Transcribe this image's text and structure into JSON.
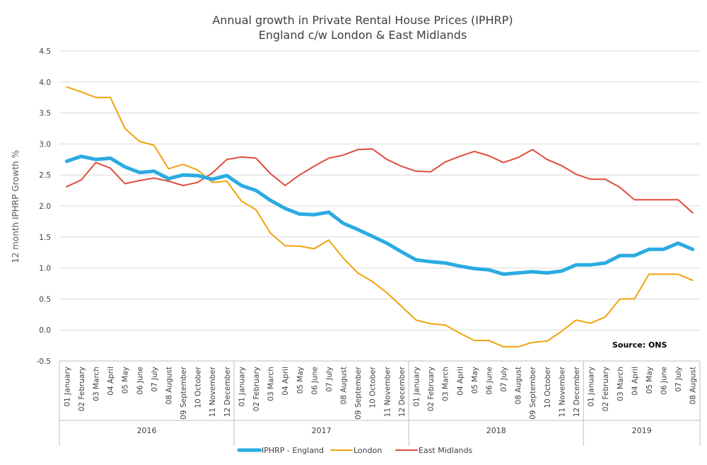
{
  "chart_data": {
    "type": "line",
    "title": "Annual growth in Private Rental House Prices (IPHRP)",
    "subtitle": "England c/w London & East Midlands",
    "ylabel": "12 month IPHRP Growth %",
    "ylim": [
      -0.5,
      4.5
    ],
    "yticks": [
      "4.5",
      "4.0",
      "3.5",
      "3.0",
      "2.5",
      "2.0",
      "1.5",
      "1.0",
      "0.5",
      "0.0",
      "-0.5"
    ],
    "grid": true,
    "legend_position": "bottom",
    "annotation": "Source: ONS",
    "years": [
      "2016",
      "2017",
      "2018",
      "2019"
    ],
    "categories": [
      "01 January",
      "02 February",
      "03 March",
      "04 April",
      "05 May",
      "06 June",
      "07 July",
      "08 August",
      "09 September",
      "10 October",
      "11 November",
      "12 December",
      "01 January",
      "02 February",
      "03 March",
      "04 April",
      "05 May",
      "06 June",
      "07 July",
      "08 August",
      "09 September",
      "10 October",
      "11 November",
      "12 December",
      "01 January",
      "02 February",
      "03 March",
      "04 April",
      "05 May",
      "06 June",
      "07 July",
      "08 August",
      "09 September",
      "10 October",
      "11 November",
      "12 December",
      "01 January",
      "02 February",
      "03 March",
      "04 April",
      "05 May",
      "06 June",
      "07 July",
      "08 August"
    ],
    "series": [
      {
        "name": "IPHRP - England",
        "color": "#2AABE2",
        "width": 5,
        "values": [
          2.72,
          2.8,
          2.75,
          2.77,
          2.63,
          2.54,
          2.56,
          2.44,
          2.5,
          2.49,
          2.43,
          2.49,
          2.33,
          2.25,
          2.09,
          1.96,
          1.87,
          1.86,
          1.9,
          1.72,
          1.62,
          1.51,
          1.4,
          1.26,
          1.13,
          1.1,
          1.08,
          1.03,
          0.99,
          0.97,
          0.9,
          0.92,
          0.94,
          0.92,
          0.95,
          1.05,
          1.05,
          1.08,
          1.2,
          1.2,
          1.3,
          1.3,
          1.4,
          1.3
        ]
      },
      {
        "name": "London",
        "color": "#F0A30A",
        "width": 2,
        "values": [
          3.92,
          3.84,
          3.75,
          3.75,
          3.25,
          3.04,
          2.98,
          2.6,
          2.67,
          2.58,
          2.38,
          2.4,
          2.08,
          1.94,
          1.56,
          1.36,
          1.35,
          1.31,
          1.45,
          1.16,
          0.92,
          0.78,
          0.6,
          0.38,
          0.16,
          0.1,
          0.08,
          -0.05,
          -0.17,
          -0.17,
          -0.27,
          -0.27,
          -0.2,
          -0.18,
          -0.02,
          0.16,
          0.11,
          0.21,
          0.5,
          0.5,
          0.9,
          0.9,
          0.9,
          0.8
        ]
      },
      {
        "name": "East Midlands",
        "color": "#E04B3A",
        "width": 2,
        "values": [
          2.31,
          2.42,
          2.7,
          2.61,
          2.36,
          2.41,
          2.45,
          2.4,
          2.33,
          2.38,
          2.53,
          2.75,
          2.79,
          2.77,
          2.52,
          2.33,
          2.5,
          2.64,
          2.77,
          2.82,
          2.91,
          2.92,
          2.75,
          2.64,
          2.56,
          2.55,
          2.71,
          2.8,
          2.88,
          2.81,
          2.7,
          2.78,
          2.91,
          2.75,
          2.65,
          2.51,
          2.43,
          2.43,
          2.3,
          2.1,
          2.1,
          2.1,
          2.1,
          1.89
        ]
      }
    ]
  }
}
